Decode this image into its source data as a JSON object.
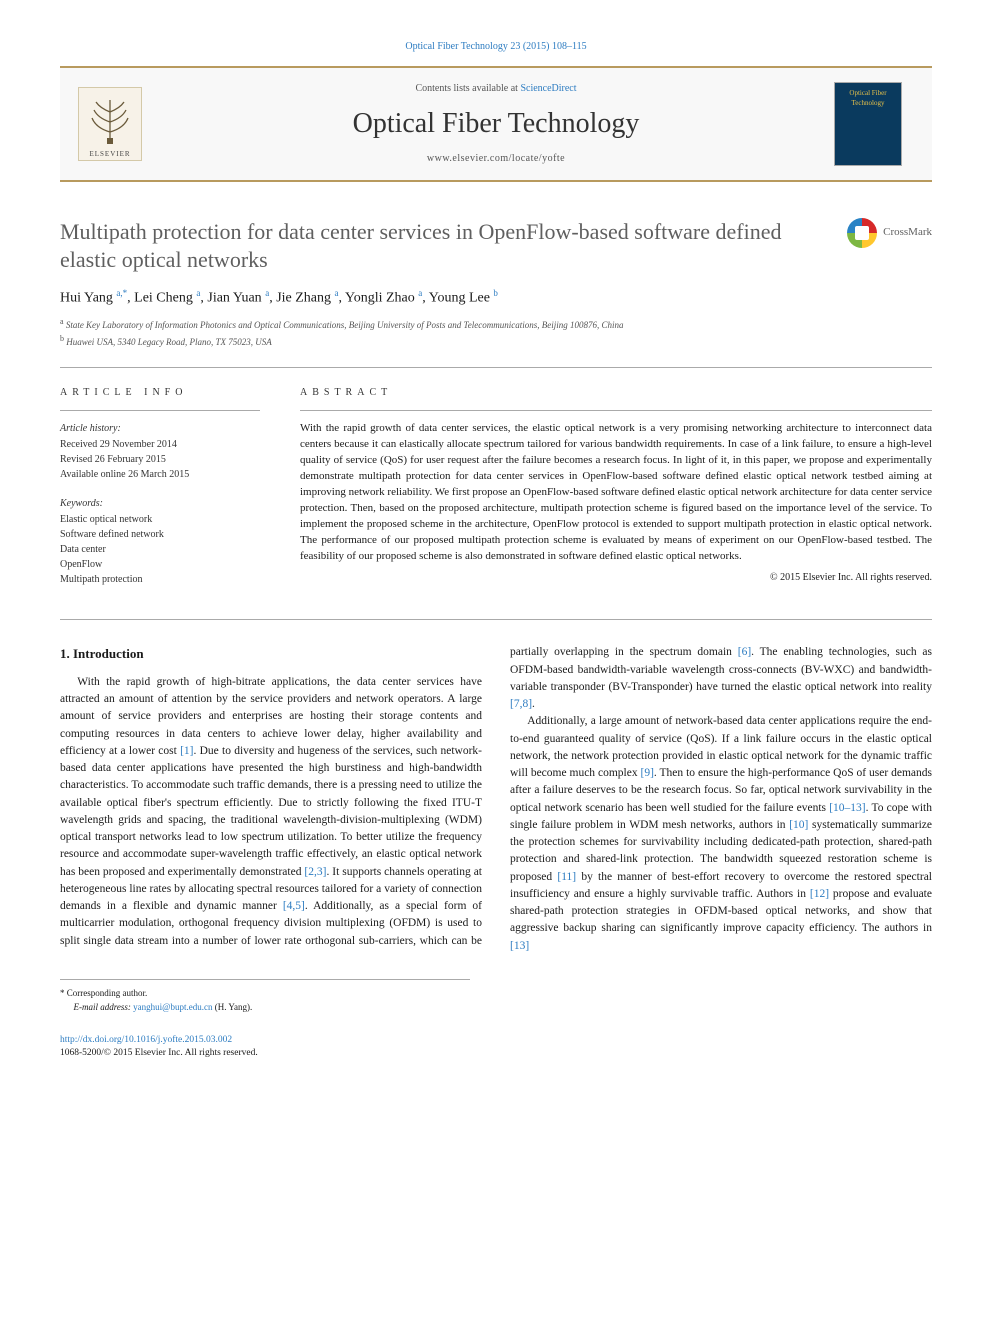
{
  "header": {
    "top_link": "Optical Fiber Technology 23 (2015) 108–115",
    "contents_prefix": "Contents lists available at ",
    "contents_link": "ScienceDirect",
    "journal_name": "Optical Fiber Technology",
    "journal_url": "www.elsevier.com/locate/yofte",
    "publisher_name": "ELSEVIER",
    "cover_label": "Optical Fiber Technology"
  },
  "crossmark": {
    "label": "CrossMark"
  },
  "title": "Multipath protection for data center services in OpenFlow-based software defined elastic optical networks",
  "authors_html": "Hui Yang <sup>a,*</sup>, Lei Cheng <sup>a</sup>, Jian Yuan <sup>a</sup>, Jie Zhang <sup>a</sup>, Yongli Zhao <sup>a</sup>, Young Lee <sup>b</sup>",
  "authors": [
    {
      "name": "Hui Yang",
      "aff": "a,*"
    },
    {
      "name": "Lei Cheng",
      "aff": "a"
    },
    {
      "name": "Jian Yuan",
      "aff": "a"
    },
    {
      "name": "Jie Zhang",
      "aff": "a"
    },
    {
      "name": "Yongli Zhao",
      "aff": "a"
    },
    {
      "name": "Young Lee",
      "aff": "b"
    }
  ],
  "affiliations": [
    {
      "mark": "a",
      "text": "State Key Laboratory of Information Photonics and Optical Communications, Beijing University of Posts and Telecommunications, Beijing 100876, China"
    },
    {
      "mark": "b",
      "text": "Huawei USA, 5340 Legacy Road, Plano, TX 75023, USA"
    }
  ],
  "info": {
    "header": "ARTICLE INFO",
    "history_label": "Article history:",
    "history": [
      "Received 29 November 2014",
      "Revised 26 February 2015",
      "Available online 26 March 2015"
    ],
    "keywords_label": "Keywords:",
    "keywords": [
      "Elastic optical network",
      "Software defined network",
      "Data center",
      "OpenFlow",
      "Multipath protection"
    ]
  },
  "abstract": {
    "header": "ABSTRACT",
    "text": "With the rapid growth of data center services, the elastic optical network is a very promising networking architecture to interconnect data centers because it can elastically allocate spectrum tailored for various bandwidth requirements. In case of a link failure, to ensure a high-level quality of service (QoS) for user request after the failure becomes a research focus. In light of it, in this paper, we propose and experimentally demonstrate multipath protection for data center services in OpenFlow-based software defined elastic optical network testbed aiming at improving network reliability. We first propose an OpenFlow-based software defined elastic optical network architecture for data center service protection. Then, based on the proposed architecture, multipath protection scheme is figured based on the importance level of the service. To implement the proposed scheme in the architecture, OpenFlow protocol is extended to support multipath protection in elastic optical network. The performance of our proposed multipath protection scheme is evaluated by means of experiment on our OpenFlow-based testbed. The feasibility of our proposed scheme is also demonstrated in software defined elastic optical networks.",
    "copyright": "© 2015 Elsevier Inc. All rights reserved."
  },
  "body": {
    "section_heading": "1. Introduction",
    "col1_p1_pre": "With the rapid growth of high-bitrate applications, the data center services have attracted an amount of attention by the service providers and network operators. A large amount of service providers and enterprises are hosting their storage contents and computing resources in data centers to achieve lower delay, higher availability and efficiency at a lower cost ",
    "ref1": "[1]",
    "col1_p1_mid1": ". Due to diversity and hugeness of the services, such network-based data center applications have presented the high burstiness and high-bandwidth characteristics. To accommodate such traffic demands, there is a pressing need to utilize the available optical fiber's spectrum efficiently. Due to strictly following the fixed ITU-T wavelength grids and spacing, the traditional wavelength-division-multiplexing (WDM) optical transport networks lead to low spectrum utilization. To better utilize the frequency resource and accommodate super-wavelength traffic effectively, an elastic optical network has been proposed and experimentally demonstrated ",
    "ref23": "[2,3]",
    "col1_p1_mid2": ". It supports channels operating at heterogeneous line rates by allocating spectral resources tailored for a variety of connection demands in a flexible and dynamic manner ",
    "ref45": "[4,5]",
    "col1_p1_post": ". Additionally, as a special form of ",
    "col2_p1_pre": "multicarrier modulation, orthogonal frequency division multiplexing (OFDM) is used to split single data stream into a number of lower rate orthogonal sub-carriers, which can be partially overlapping in the spectrum domain ",
    "ref6": "[6]",
    "col2_p1_mid": ". The enabling technologies, such as OFDM-based bandwidth-variable wavelength cross-connects (BV-WXC) and bandwidth-variable transponder (BV-Transponder) have turned the elastic optical network into reality ",
    "ref78": "[7,8]",
    "col2_p1_post": ".",
    "col2_p2_pre": "Additionally, a large amount of network-based data center applications require the end-to-end guaranteed quality of service (QoS). If a link failure occurs in the elastic optical network, the network protection provided in elastic optical network for the dynamic traffic will become much complex ",
    "ref9": "[9]",
    "col2_p2_mid1": ". Then to ensure the high-performance QoS of user demands after a failure deserves to be the research focus. So far, optical network survivability in the optical network scenario has been well studied for the failure events ",
    "ref1013": "[10–13]",
    "col2_p2_mid2": ". To cope with single failure problem in WDM mesh networks, authors in ",
    "ref10": "[10]",
    "col2_p2_mid3": " systematically summarize the protection schemes for survivability including dedicated-path protection, shared-path protection and shared-link protection. The bandwidth squeezed restoration scheme is proposed ",
    "ref11": "[11]",
    "col2_p2_mid4": " by the manner of best-effort recovery to overcome the restored spectral insufficiency and ensure a highly survivable traffic. Authors in ",
    "ref12": "[12]",
    "col2_p2_mid5": " propose and evaluate shared-path protection strategies in OFDM-based optical networks, and show that aggressive backup sharing can significantly improve capacity efficiency. The authors in ",
    "ref13": "[13]"
  },
  "footnote": {
    "corr_label": "* Corresponding author.",
    "email_label": "E-mail address: ",
    "email": "yanghui@bupt.edu.cn",
    "email_after": " (H. Yang)."
  },
  "footer": {
    "doi": "http://dx.doi.org/10.1016/j.yofte.2015.03.002",
    "issn_line": "1068-5200/© 2015 Elsevier Inc. All rights reserved."
  },
  "colors": {
    "band_border": "#b89a5e",
    "link": "#2d7cc1",
    "body_text": "#1a1a1a",
    "muted": "#5f5f5f",
    "cover_bg": "#0a3a5e",
    "cover_text": "#e6c14a"
  }
}
